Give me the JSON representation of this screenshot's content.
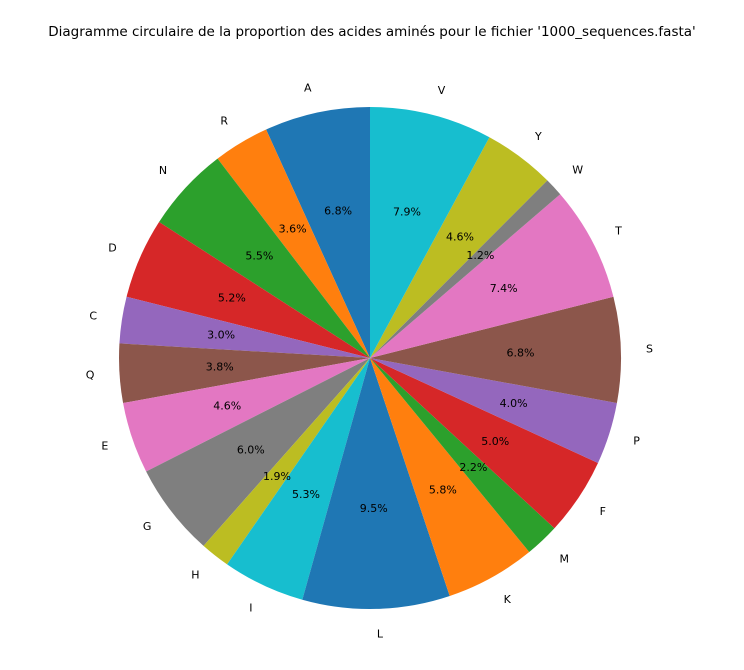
{
  "chart_data": {
    "type": "pie",
    "title": "Diagramme circulaire de la proportion des acides aminés pour le fichier '1000_sequences.fasta'",
    "start_angle_deg": 90,
    "direction": "counterclockwise",
    "categories": [
      "A",
      "R",
      "N",
      "D",
      "C",
      "Q",
      "E",
      "G",
      "H",
      "I",
      "L",
      "K",
      "M",
      "F",
      "P",
      "S",
      "T",
      "W",
      "Y",
      "V"
    ],
    "values": [
      6.8,
      3.6,
      5.5,
      5.2,
      3.0,
      3.8,
      4.6,
      6.0,
      1.9,
      5.3,
      9.5,
      5.8,
      2.2,
      5.0,
      4.0,
      6.8,
      7.4,
      1.2,
      4.6,
      7.9
    ],
    "labels": [
      "6.8%",
      "3.6%",
      "5.5%",
      "5.2%",
      "3.0%",
      "3.8%",
      "4.6%",
      "6.0%",
      "1.9%",
      "5.3%",
      "9.5%",
      "5.8%",
      "2.2%",
      "5.0%",
      "4.0%",
      "6.8%",
      "7.4%",
      "1.2%",
      "4.6%",
      "7.9%"
    ],
    "colors": [
      "#1f77b4",
      "#ff7f0e",
      "#2ca02c",
      "#d62728",
      "#9467bd",
      "#8c564b",
      "#e377c2",
      "#7f7f7f",
      "#bcbd22",
      "#17becf",
      "#1f77b4",
      "#ff7f0e",
      "#2ca02c",
      "#d62728",
      "#9467bd",
      "#8c564b",
      "#e377c2",
      "#7f7f7f",
      "#bcbd22",
      "#17becf"
    ]
  }
}
